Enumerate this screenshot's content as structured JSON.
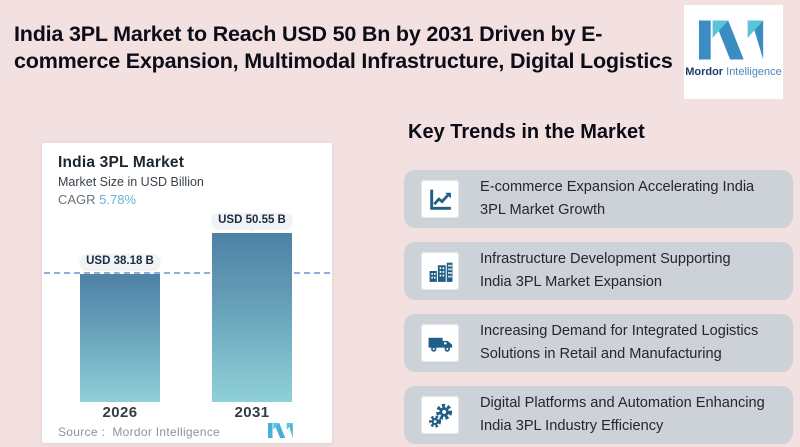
{
  "colors": {
    "page_background": "#f3e1e1",
    "title_text": "#0d0d17",
    "chart_card_bg": "#ffffff",
    "trend_card_bg": "#cdd2d8",
    "icon_tile_bg": "#ffffff",
    "icon_glyph_blue": "#1f5f87",
    "bar_gradient_top": "#4d81a5",
    "bar_gradient_bottom": "#8fd0d8",
    "dashed_reference_line": "#8fadd9",
    "cagr_value_blue": "#68b1da",
    "source_text_gray": "#8e939b",
    "logo_blue": "#3a8cc3",
    "logo_teal": "#5ac4d9",
    "brand_dark_blue": "#1d3e6b",
    "brand_light_blue": "#4c86c0"
  },
  "header": {
    "title_line1": "India 3PL Market to Reach USD 50 Bn by 2031 Driven by E-",
    "title_line2": "commerce Expansion, Multimodal Infrastructure, Digital Logistics"
  },
  "logo": {
    "mark_icon": "mordor-intelligence-logo",
    "brand_bold": "Mordor",
    "brand_light": " Intelligence"
  },
  "chart": {
    "title": "India 3PL Market",
    "subtitle": "Market Size in USD Billion",
    "cagr_label": "CAGR ",
    "cagr_value": "5.78%",
    "source": "Source :  Mordor Intelligence"
  },
  "chart_data": {
    "type": "bar",
    "title": "India 3PL Market",
    "ylabel": "Market Size in USD Billion",
    "xlabel": "",
    "categories": [
      "2026",
      "2031"
    ],
    "values": [
      38.18,
      50.55
    ],
    "bar_labels": [
      "USD 38.18 B",
      "USD 50.55 B"
    ],
    "unit": "USD Billion",
    "cagr_percent": 5.78,
    "reference_line_value": 38.18,
    "ylim": [
      0,
      55
    ],
    "grid": false,
    "legend": false
  },
  "trends": {
    "heading": "Key Trends in the Market",
    "items": [
      {
        "icon": "line-chart-icon",
        "line1": "E-commerce Expansion Accelerating India",
        "line2": "3PL Market Growth"
      },
      {
        "icon": "buildings-icon",
        "line1": "Infrastructure Development Supporting",
        "line2": "India 3PL Market Expansion"
      },
      {
        "icon": "truck-icon",
        "line1": "Increasing Demand for Integrated Logistics",
        "line2": "Solutions in Retail and Manufacturing"
      },
      {
        "icon": "gears-icon",
        "line1": "Digital Platforms and Automation Enhancing",
        "line2": "India 3PL Industry Efficiency"
      }
    ]
  }
}
